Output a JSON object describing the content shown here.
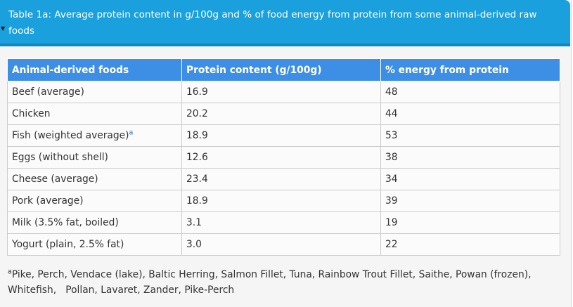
{
  "header": {
    "title": "Table 1a: Average protein content in g/100g and % of food energy from protein from some animal-derived raw foods"
  },
  "table": {
    "columns": [
      "Animal-derived foods",
      "Protein content (g/100g)",
      "% energy from protein"
    ],
    "rows": [
      {
        "food": "Beef (average)",
        "sup": "",
        "protein": "16.9",
        "energy": "48"
      },
      {
        "food": "Chicken",
        "sup": "",
        "protein": "20.2",
        "energy": "44"
      },
      {
        "food": "Fish (weighted average)",
        "sup": "a",
        "protein": "18.9",
        "energy": "53"
      },
      {
        "food": "Eggs (without shell)",
        "sup": "",
        "protein": "12.6",
        "energy": "38"
      },
      {
        "food": "Cheese (average)",
        "sup": "",
        "protein": "23.4",
        "energy": "34"
      },
      {
        "food": "Pork (average)",
        "sup": "",
        "protein": "18.9",
        "energy": "39"
      },
      {
        "food": "Milk (3.5% fat, boiled)",
        "sup": "",
        "protein": "3.1",
        "energy": "19"
      },
      {
        "food": "Yogurt (plain, 2.5% fat)",
        "sup": "",
        "protein": "3.0",
        "energy": "22"
      }
    ]
  },
  "footnote": {
    "marker": "a",
    "line1": "Pike, Perch, Vendace (lake), Baltic Herring, Salmon Fillet, Tuna, Rainbow Trout Fillet, Saithe, Powan (frozen),",
    "line2": "Whitefish,   Pollan, Lavaret, Zander, Pike-Perch"
  },
  "colors": {
    "header_bg": "#1aa0dc",
    "table_header_bg": "#3d8fe6",
    "text": "#333333"
  },
  "icons": {
    "collapse": "caret-down-icon"
  }
}
